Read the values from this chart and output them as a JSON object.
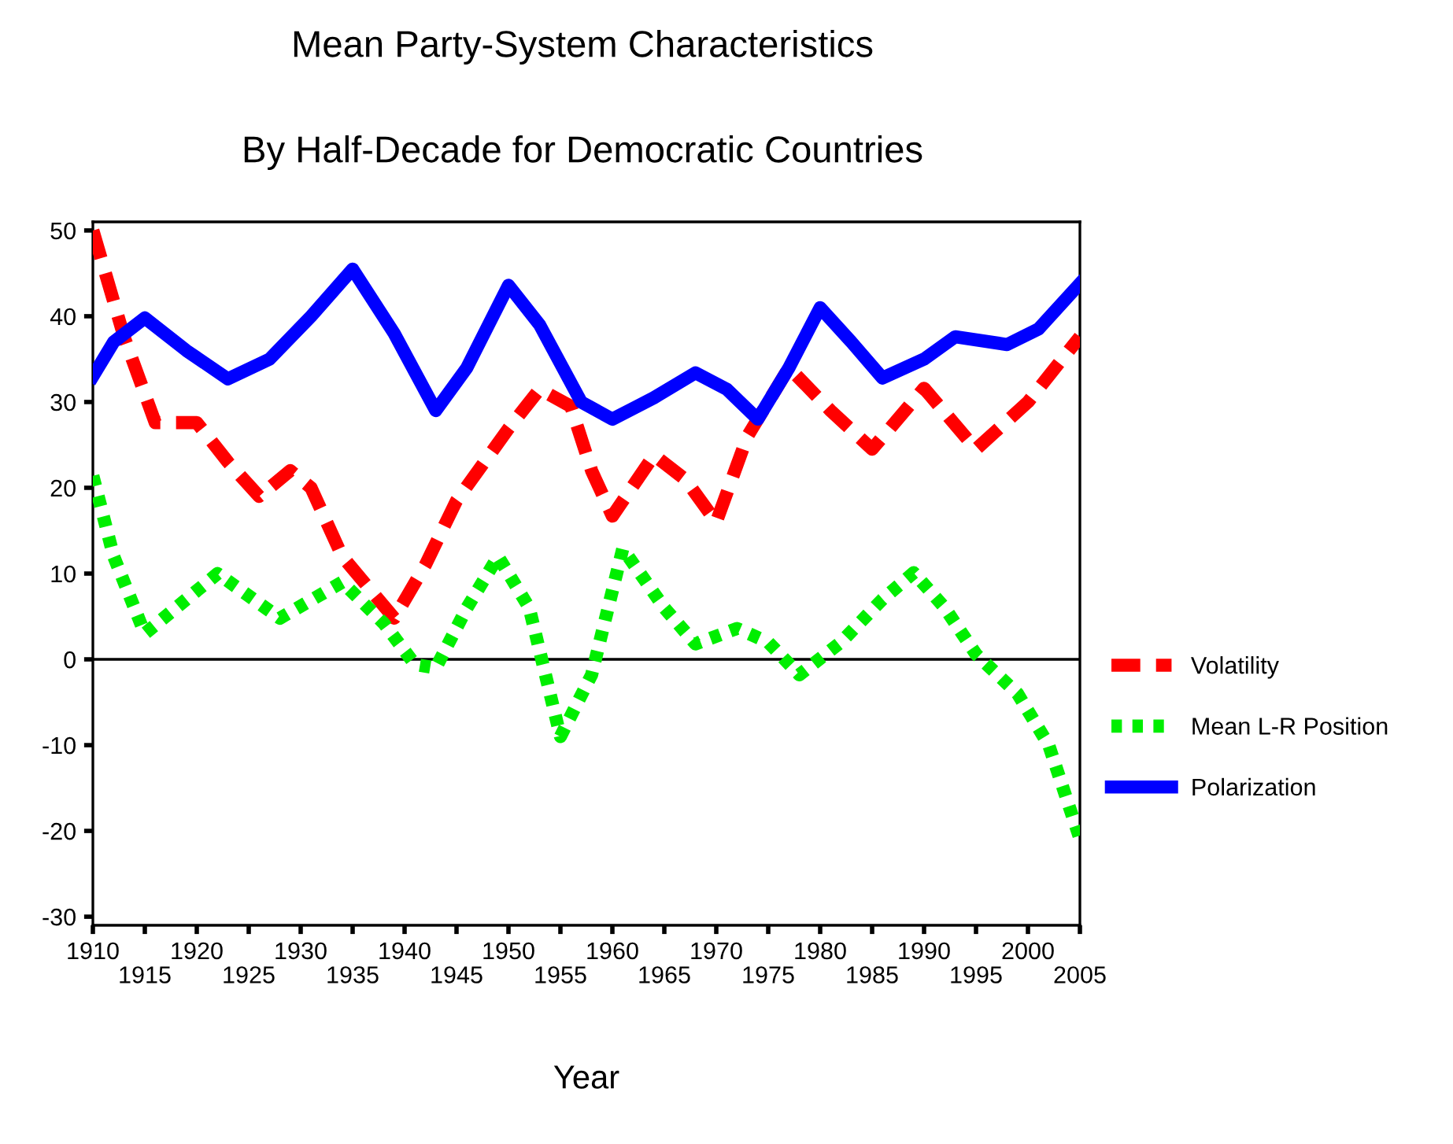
{
  "chart_data": {
    "type": "line",
    "title": "Mean Party-System Characteristics",
    "subtitle": "By Half-Decade for Democratic Countries",
    "xlabel": "Year",
    "xlim": [
      1910,
      2005
    ],
    "xticks": [
      1910,
      {
        "value": 1915,
        "label": null
      },
      1920,
      {
        "value": 1925,
        "label": null
      },
      1930,
      {
        "value": 1935,
        "label": null
      },
      1940,
      {
        "value": 1945,
        "label": null
      },
      1950,
      {
        "value": 1955,
        "label": null
      },
      1960,
      {
        "value": 1965,
        "label": null
      },
      1970,
      {
        "value": 1975,
        "label": null
      },
      1980,
      {
        "value": 1985,
        "label": null
      },
      1990,
      {
        "value": 1995,
        "label": null
      },
      2000,
      {
        "value": 2005,
        "label": null
      }
    ],
    "x2lim": [
      1910,
      2005
    ],
    "x2ticks": [
      1915,
      1925,
      1935,
      1945,
      1955,
      1965,
      1975,
      1985,
      1995,
      2005
    ],
    "ylim": [
      -31,
      51
    ],
    "yticks": [
      -30,
      -20,
      -10,
      0,
      10,
      20,
      30,
      40,
      50
    ],
    "grid": false,
    "legend": "right",
    "ref_lines": [
      {
        "axis": "y",
        "value": 0,
        "color": "#000000",
        "line_style": "solid"
      }
    ],
    "series": [
      {
        "name": "Volatility",
        "color": "#ff0000",
        "line_style": "dashed",
        "x": [
          1910,
          1913,
          1916,
          1920,
          1923,
          1926,
          1929,
          1931,
          1934,
          1939,
          1942,
          1945,
          1950,
          1953,
          1956,
          1958,
          1960,
          1964,
          1967,
          1970,
          1973,
          1977,
          1981,
          1985,
          1990,
          1995,
          2000,
          2005
        ],
        "values": [
          50,
          37.6,
          27.6,
          27.6,
          23,
          19,
          22,
          20,
          12,
          4.8,
          11,
          18.5,
          26.9,
          31.5,
          29.5,
          22,
          16.7,
          23.8,
          21,
          16,
          26,
          34,
          29,
          24.5,
          31.6,
          24.5,
          30,
          37.6
        ]
      },
      {
        "name": "Mean L-R Position",
        "color": "#00ee00",
        "line_style": "dotted",
        "x": [
          1910,
          1912,
          1915,
          1918,
          1922,
          1928,
          1934,
          1938,
          1941,
          1943,
          1946,
          1949,
          1952,
          1955,
          1958,
          1961,
          1965,
          1968,
          1972,
          1975,
          1978,
          1982,
          1986,
          1989,
          1992,
          1995,
          1999,
          2002,
          2005
        ],
        "values": [
          21.4,
          12,
          3,
          6,
          10,
          4.8,
          9,
          4.2,
          -0.6,
          -1,
          6,
          12,
          6,
          -9,
          -1.8,
          12.9,
          6,
          1.8,
          3.6,
          2,
          -1.8,
          2,
          7,
          10.1,
          6,
          0.6,
          -4,
          -10,
          -20.9
        ]
      },
      {
        "name": "Polarization",
        "color": "#0000ff",
        "line_style": "solid",
        "x": [
          1910,
          1912,
          1915,
          1919,
          1923,
          1927,
          1931,
          1935,
          1939,
          1943,
          1946,
          1950,
          1953,
          1957,
          1960,
          1964,
          1968,
          1971,
          1974,
          1977,
          1980,
          1983,
          1986,
          1990,
          1993,
          1998,
          2001,
          2005
        ],
        "values": [
          33,
          37,
          39.8,
          36,
          32.7,
          35,
          40,
          45.5,
          38,
          29,
          34,
          43.6,
          39,
          30,
          28,
          30.5,
          33.4,
          31.5,
          28,
          34,
          41,
          37,
          32.8,
          35,
          37.6,
          36.7,
          38.5,
          43.8
        ]
      }
    ]
  }
}
